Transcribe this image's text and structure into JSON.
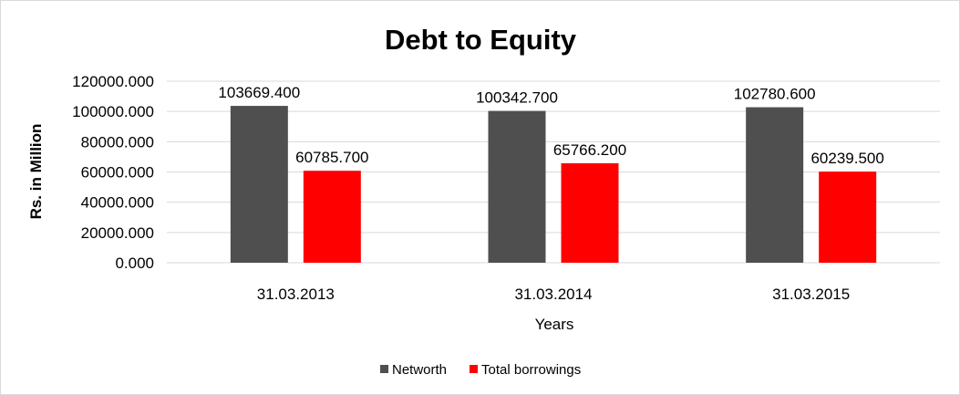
{
  "chart_data": {
    "type": "bar",
    "title": "Debt to Equity",
    "xlabel": "Years",
    "ylabel": "Rs. in Million",
    "categories": [
      "31.03.2013",
      "31.03.2014",
      "31.03.2015"
    ],
    "series": [
      {
        "name": "Networth",
        "color": "#4f4f4f",
        "values": [
          103669.4,
          100342.7,
          102780.6
        ],
        "labels": [
          "103669.400",
          "100342.700",
          "102780.600"
        ]
      },
      {
        "name": "Total borrowings",
        "color": "#ff0000",
        "values": [
          60785.7,
          65766.2,
          60239.5
        ],
        "labels": [
          "60785.700",
          "65766.200",
          "60239.500"
        ]
      }
    ],
    "ylim": [
      0,
      120000
    ],
    "yticks": [
      0,
      20000,
      40000,
      60000,
      80000,
      100000,
      120000
    ],
    "ytick_labels": [
      "0.000",
      "20000.000",
      "40000.000",
      "60000.000",
      "80000.000",
      "100000.000",
      "120000.000"
    ],
    "grid": true,
    "legend_position": "bottom"
  }
}
